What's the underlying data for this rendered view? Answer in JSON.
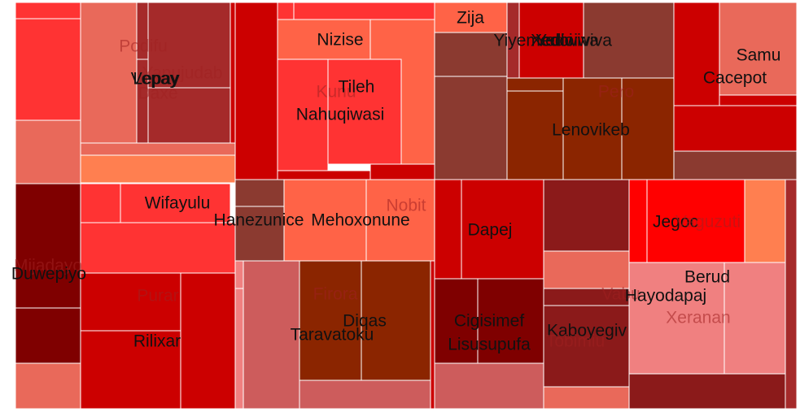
{
  "chart_data": {
    "type": "treemap",
    "title": "",
    "labels": [
      "Podifu",
      "Yapujudab",
      "Vepay",
      "Lepay",
      "Daxe",
      "Nizise",
      "Kunu",
      "Tileh",
      "Nahuqiwasi",
      "Zija",
      "Yiyemedoi",
      "Yedoiwiva",
      "Xediwiva",
      "Pero",
      "Lenovikeb",
      "Samu",
      "Cacepot",
      "Wifayulu",
      "Hanezunice",
      "Mehoxonune",
      "Nobit",
      "Mijadayo",
      "Duwepiyo",
      "Dapej",
      "Jegoc",
      "Vaguzuti",
      "Berud",
      "Vabu",
      "Hayodapaj",
      "Xeranan",
      "Purar",
      "Rilixar",
      "Firora",
      "Diqas",
      "Taravatoku",
      "Cigisimef",
      "Lisusupufa",
      "Kaboyegiv",
      "Tobimiu"
    ],
    "faint_labels": [
      "Podifu",
      "Yapujudab",
      "Daxe",
      "Kunu",
      "Pero",
      "Nobit",
      "Mijadayo",
      "Purar",
      "Firora",
      "Vabu",
      "Vaguzuti",
      "Xeranan",
      "Tobimiu"
    ],
    "legend": "none",
    "grid": false,
    "colors": {
      "dark_red": "#7f0000",
      "maroon": "#8b1a1a",
      "brick": "#a52a2a",
      "red": "#cc0000",
      "bright_red": "#ff0000",
      "tomato": "#ff3333",
      "coral": "#ff6347",
      "salmon": "#e9695a",
      "rose": "#cd5c5c",
      "pink": "#f08080",
      "brown": "#8b3a30",
      "rust": "#8b2500",
      "orange": "#ff7f50",
      "border": "#ffffff"
    }
  }
}
